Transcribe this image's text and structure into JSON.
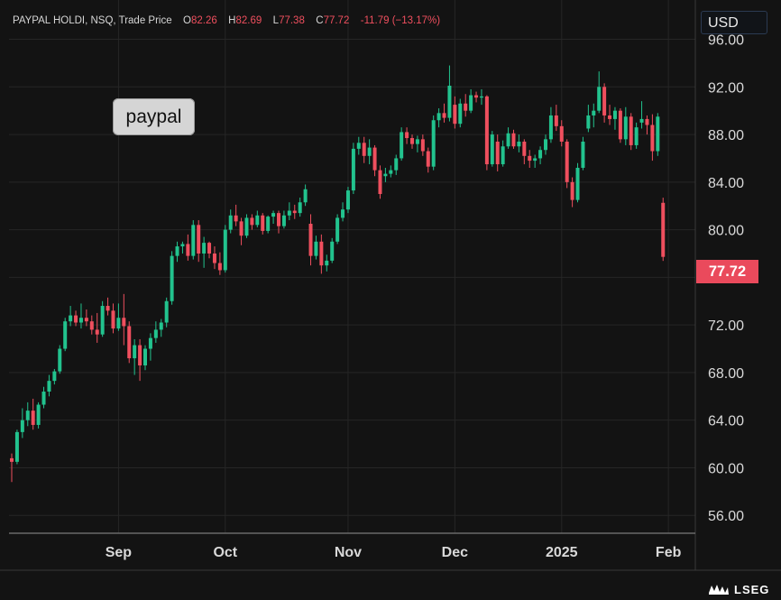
{
  "header": {
    "symbol": "PAYPAL HOLDI, NSQ, Trade Price",
    "open_label": "O",
    "open": "82.26",
    "high_label": "H",
    "high": "82.69",
    "low_label": "L",
    "low": "77.38",
    "close_label": "C",
    "close": "77.72",
    "change": "-11.79",
    "change_pct": "(−13.17%)"
  },
  "currency": "USD",
  "annotation": "paypal",
  "last_price": "77.72",
  "logo": "LSEG",
  "colors": {
    "up": "#22c38e",
    "down": "#ef4f5e",
    "background": "#131313",
    "grid": "#262626"
  },
  "chart_data": {
    "type": "candlestick",
    "y_axis_position": "right",
    "ylim": [
      54.5,
      99.3
    ],
    "yticks": [
      56,
      60,
      64,
      68,
      72,
      76,
      80,
      84,
      88,
      92,
      96
    ],
    "ytick_labels": [
      "56.00",
      "60.00",
      "64.00",
      "68.00",
      "72.00",
      "76.00",
      "80.00",
      "84.00",
      "88.00",
      "92.00",
      "96.00"
    ],
    "xticks": [
      {
        "label": "Sep",
        "index": 20
      },
      {
        "label": "Oct",
        "index": 40
      },
      {
        "label": "Nov",
        "index": 63
      },
      {
        "label": "Dec",
        "index": 83
      },
      {
        "label": "2025",
        "index": 103
      },
      {
        "label": "Feb",
        "index": 123
      }
    ],
    "grid": true,
    "candles": [
      [
        60.8,
        61.2,
        58.8,
        60.5
      ],
      [
        60.5,
        63.2,
        60.3,
        63.0
      ],
      [
        63.0,
        65.0,
        62.5,
        64.0
      ],
      [
        64.0,
        65.5,
        63.5,
        64.8
      ],
      [
        64.8,
        65.8,
        63.2,
        63.6
      ],
      [
        63.6,
        65.5,
        63.3,
        65.3
      ],
      [
        65.3,
        66.8,
        65.0,
        66.4
      ],
      [
        66.4,
        67.8,
        66.0,
        67.3
      ],
      [
        67.3,
        68.3,
        67.0,
        68.1
      ],
      [
        68.1,
        70.3,
        67.9,
        70.0
      ],
      [
        70.0,
        72.6,
        69.8,
        72.3
      ],
      [
        72.3,
        73.6,
        71.9,
        72.8
      ],
      [
        72.8,
        73.2,
        71.9,
        72.2
      ],
      [
        72.2,
        73.8,
        71.7,
        72.6
      ],
      [
        72.6,
        73.3,
        71.9,
        72.3
      ],
      [
        72.3,
        72.8,
        71.2,
        71.6
      ],
      [
        71.6,
        73.0,
        70.5,
        71.2
      ],
      [
        71.2,
        74.0,
        71.0,
        73.6
      ],
      [
        73.6,
        74.3,
        72.8,
        73.2
      ],
      [
        73.2,
        73.8,
        71.3,
        71.7
      ],
      [
        71.7,
        73.8,
        71.5,
        72.6
      ],
      [
        72.6,
        74.6,
        70.3,
        71.9
      ],
      [
        71.9,
        72.3,
        68.8,
        69.2
      ],
      [
        69.2,
        70.8,
        67.8,
        70.3
      ],
      [
        70.3,
        70.8,
        67.3,
        68.6
      ],
      [
        68.6,
        70.3,
        68.2,
        70.0
      ],
      [
        70.0,
        71.3,
        69.0,
        70.9
      ],
      [
        70.9,
        72.3,
        70.5,
        71.6
      ],
      [
        71.6,
        72.5,
        71.0,
        72.2
      ],
      [
        72.2,
        74.3,
        71.8,
        74.0
      ],
      [
        74.0,
        78.2,
        73.7,
        77.8
      ],
      [
        77.8,
        79.0,
        77.3,
        78.6
      ],
      [
        78.6,
        79.0,
        78.0,
        78.8
      ],
      [
        78.8,
        79.6,
        77.4,
        77.8
      ],
      [
        77.8,
        80.8,
        77.5,
        80.4
      ],
      [
        80.4,
        80.8,
        77.3,
        78.0
      ],
      [
        78.0,
        79.4,
        76.8,
        78.9
      ],
      [
        78.9,
        79.0,
        77.6,
        78.0
      ],
      [
        78.0,
        78.6,
        76.7,
        77.2
      ],
      [
        77.2,
        78.1,
        76.2,
        76.6
      ],
      [
        76.6,
        80.4,
        76.4,
        80.0
      ],
      [
        80.0,
        81.7,
        79.7,
        81.2
      ],
      [
        81.2,
        82.1,
        80.3,
        80.7
      ],
      [
        80.7,
        81.0,
        78.7,
        79.5
      ],
      [
        79.5,
        81.3,
        79.3,
        81.0
      ],
      [
        81.0,
        81.3,
        80.0,
        80.4
      ],
      [
        80.4,
        81.6,
        80.2,
        81.2
      ],
      [
        81.2,
        81.4,
        79.6,
        79.9
      ],
      [
        79.9,
        81.2,
        79.7,
        81.1
      ],
      [
        81.1,
        81.6,
        80.5,
        81.4
      ],
      [
        81.4,
        81.6,
        79.7,
        80.3
      ],
      [
        80.3,
        81.6,
        80.1,
        81.2
      ],
      [
        81.2,
        82.3,
        80.8,
        81.6
      ],
      [
        81.6,
        82.1,
        80.9,
        81.4
      ],
      [
        81.4,
        82.7,
        81.1,
        82.3
      ],
      [
        82.3,
        83.8,
        82.0,
        83.4
      ],
      [
        80.5,
        81.3,
        77.0,
        77.8
      ],
      [
        77.8,
        79.5,
        77.5,
        79.0
      ],
      [
        79.0,
        79.6,
        76.3,
        77.0
      ],
      [
        77.0,
        77.9,
        76.5,
        77.4
      ],
      [
        77.4,
        79.3,
        77.2,
        79.0
      ],
      [
        79.0,
        81.3,
        78.8,
        81.0
      ],
      [
        81.0,
        82.3,
        80.7,
        81.7
      ],
      [
        81.7,
        83.6,
        81.4,
        83.3
      ],
      [
        83.3,
        87.3,
        83.0,
        86.8
      ],
      [
        86.8,
        87.8,
        86.3,
        87.3
      ],
      [
        87.3,
        87.8,
        85.6,
        86.2
      ],
      [
        86.2,
        87.6,
        85.5,
        86.9
      ],
      [
        86.9,
        87.1,
        84.5,
        85.0
      ],
      [
        85.0,
        85.4,
        82.6,
        83.0
      ],
      [
        84.5,
        85.2,
        84.0,
        84.7
      ],
      [
        84.7,
        85.4,
        84.4,
        85.0
      ],
      [
        85.0,
        86.3,
        84.6,
        86.0
      ],
      [
        86.0,
        88.6,
        85.8,
        88.2
      ],
      [
        88.2,
        88.6,
        87.2,
        87.7
      ],
      [
        87.7,
        88.0,
        86.8,
        87.2
      ],
      [
        87.2,
        87.9,
        86.5,
        87.6
      ],
      [
        87.6,
        88.0,
        86.2,
        86.6
      ],
      [
        86.6,
        86.9,
        84.8,
        85.3
      ],
      [
        85.3,
        89.6,
        85.0,
        89.2
      ],
      [
        89.2,
        90.2,
        88.6,
        89.8
      ],
      [
        89.8,
        90.6,
        89.0,
        89.4
      ],
      [
        89.4,
        93.8,
        89.1,
        92.1
      ],
      [
        90.5,
        91.2,
        88.5,
        88.9
      ],
      [
        88.9,
        91.0,
        88.6,
        90.6
      ],
      [
        90.6,
        91.4,
        89.5,
        90.0
      ],
      [
        90.0,
        91.8,
        89.8,
        91.3
      ],
      [
        91.3,
        91.6,
        90.7,
        91.1
      ],
      [
        91.1,
        91.8,
        90.5,
        91.2
      ],
      [
        91.2,
        91.3,
        85.0,
        85.5
      ],
      [
        85.5,
        88.3,
        85.3,
        88.0
      ],
      [
        87.4,
        88.0,
        84.9,
        85.5
      ],
      [
        85.5,
        87.5,
        85.3,
        87.0
      ],
      [
        87.0,
        88.6,
        86.8,
        88.1
      ],
      [
        88.1,
        88.4,
        86.8,
        87.0
      ],
      [
        87.0,
        88.0,
        86.5,
        87.4
      ],
      [
        87.4,
        87.6,
        85.5,
        86.2
      ],
      [
        86.2,
        86.7,
        85.2,
        85.8
      ],
      [
        85.8,
        86.3,
        85.2,
        86.0
      ],
      [
        86.0,
        87.0,
        85.5,
        86.7
      ],
      [
        86.7,
        88.0,
        86.3,
        87.6
      ],
      [
        87.6,
        90.3,
        87.3,
        89.6
      ],
      [
        89.6,
        90.5,
        88.3,
        88.7
      ],
      [
        88.7,
        89.2,
        87.0,
        87.4
      ],
      [
        87.4,
        87.6,
        83.5,
        84.0
      ],
      [
        84.0,
        84.4,
        81.9,
        82.5
      ],
      [
        82.5,
        85.6,
        82.3,
        85.2
      ],
      [
        85.2,
        87.8,
        85.0,
        87.4
      ],
      [
        88.5,
        90.5,
        88.2,
        89.6
      ],
      [
        89.6,
        90.6,
        88.6,
        90.0
      ],
      [
        90.0,
        93.3,
        89.8,
        92.0
      ],
      [
        92.0,
        92.3,
        89.0,
        89.6
      ],
      [
        89.6,
        90.5,
        88.8,
        89.3
      ],
      [
        89.3,
        90.3,
        88.4,
        90.0
      ],
      [
        90.0,
        90.2,
        87.3,
        87.6
      ],
      [
        87.6,
        90.3,
        87.1,
        89.5
      ],
      [
        89.5,
        89.8,
        86.7,
        87.1
      ],
      [
        87.1,
        89.0,
        86.8,
        88.6
      ],
      [
        89.0,
        90.8,
        88.5,
        89.3
      ],
      [
        89.3,
        89.6,
        88.0,
        88.8
      ],
      [
        88.8,
        89.7,
        85.8,
        86.6
      ],
      [
        86.6,
        89.8,
        86.2,
        89.5
      ],
      [
        82.26,
        82.69,
        77.38,
        77.72
      ]
    ]
  }
}
